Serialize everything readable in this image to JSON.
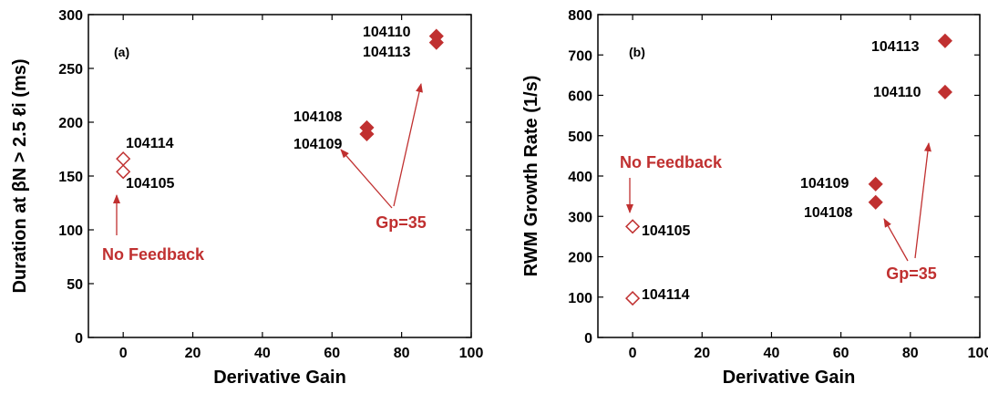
{
  "colors": {
    "accent": "#c03030",
    "axis": "#000000"
  },
  "chart_data": [
    {
      "type": "scatter",
      "panel_label": "(a)",
      "xlabel": "Derivative Gain",
      "ylabel": "Duration at βN > 2.5 ℓi (ms)",
      "xlim": [
        -10,
        100
      ],
      "ylim": [
        0,
        300
      ],
      "xticks": [
        0,
        20,
        40,
        60,
        80,
        100
      ],
      "yticks": [
        0,
        50,
        100,
        150,
        200,
        250,
        300
      ],
      "grid": false,
      "points": [
        {
          "x": 0,
          "y": 166,
          "label": "104114",
          "filled": false
        },
        {
          "x": 0,
          "y": 154,
          "label": "104105",
          "filled": false
        },
        {
          "x": 70,
          "y": 195,
          "label": "104108",
          "filled": true
        },
        {
          "x": 70,
          "y": 189,
          "label": "104109",
          "filled": true
        },
        {
          "x": 90,
          "y": 280,
          "label": "104110",
          "filled": true
        },
        {
          "x": 90,
          "y": 274,
          "label": "104113",
          "filled": true
        }
      ],
      "annotations": [
        {
          "text": "No Feedback"
        },
        {
          "text": "Gp=35"
        }
      ]
    },
    {
      "type": "scatter",
      "panel_label": "(b)",
      "xlabel": "Derivative Gain",
      "ylabel": "RWM Growth Rate (1/s)",
      "xlim": [
        -10,
        100
      ],
      "ylim": [
        0,
        800
      ],
      "xticks": [
        0,
        20,
        40,
        60,
        80,
        100
      ],
      "yticks": [
        0,
        100,
        200,
        300,
        400,
        500,
        600,
        700,
        800
      ],
      "grid": false,
      "points": [
        {
          "x": 0,
          "y": 275,
          "label": "104105",
          "filled": false
        },
        {
          "x": 0,
          "y": 97,
          "label": "104114",
          "filled": false
        },
        {
          "x": 70,
          "y": 380,
          "label": "104109",
          "filled": true
        },
        {
          "x": 70,
          "y": 335,
          "label": "104108",
          "filled": true
        },
        {
          "x": 90,
          "y": 735,
          "label": "104113",
          "filled": true
        },
        {
          "x": 90,
          "y": 608,
          "label": "104110",
          "filled": true
        }
      ],
      "annotations": [
        {
          "text": "No Feedback"
        },
        {
          "text": "Gp=35"
        }
      ]
    }
  ]
}
